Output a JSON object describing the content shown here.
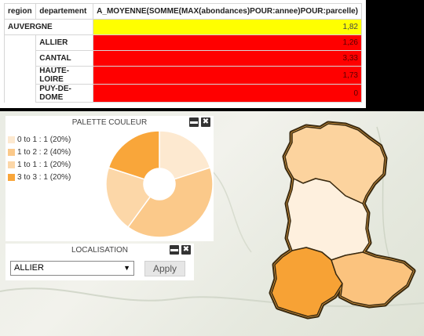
{
  "table": {
    "headers": [
      "region",
      "departement",
      "A_MOYENNE(SOMME(MAX(abondances)POUR:annee)POUR:parcelle)"
    ],
    "region_row": {
      "region": "AUVERGNE",
      "value": "1,82"
    },
    "rows": [
      {
        "departement": "ALLIER",
        "value": "1,26"
      },
      {
        "departement": "CANTAL",
        "value": "3,33"
      },
      {
        "departement": "HAUTE-LOIRE",
        "value": "1,73"
      },
      {
        "departement": "PUY-DE-DOME",
        "value": "0"
      }
    ]
  },
  "palette": {
    "title": "PALETTE COULEUR",
    "legend": [
      {
        "label": "0 to 1 : 1 (20%)",
        "color": "#fde9d0"
      },
      {
        "label": "1 to 2 : 2 (40%)",
        "color": "#fbc98a"
      },
      {
        "label": "1 to 1 : 1 (20%)",
        "color": "#fcd7a8"
      },
      {
        "label": "3 to 3 : 1 (20%)",
        "color": "#f9a63a"
      }
    ],
    "chart_data": {
      "type": "pie",
      "categories": [
        "0 to 1",
        "1 to 2",
        "1 to 1",
        "3 to 3"
      ],
      "values": [
        20,
        40,
        20,
        20
      ]
    }
  },
  "localisation": {
    "title": "LOCALISATION",
    "selected": "ALLIER",
    "apply_label": "Apply"
  },
  "map": {
    "regions": [
      {
        "name": "ALLIER",
        "color": "#fcd39e"
      },
      {
        "name": "PUY-DE-DOME",
        "color": "#fef0de"
      },
      {
        "name": "CANTAL",
        "color": "#f7a235"
      },
      {
        "name": "HAUTE-LOIRE",
        "color": "#fbc37e"
      }
    ],
    "outline_color": "#3a2a10"
  }
}
